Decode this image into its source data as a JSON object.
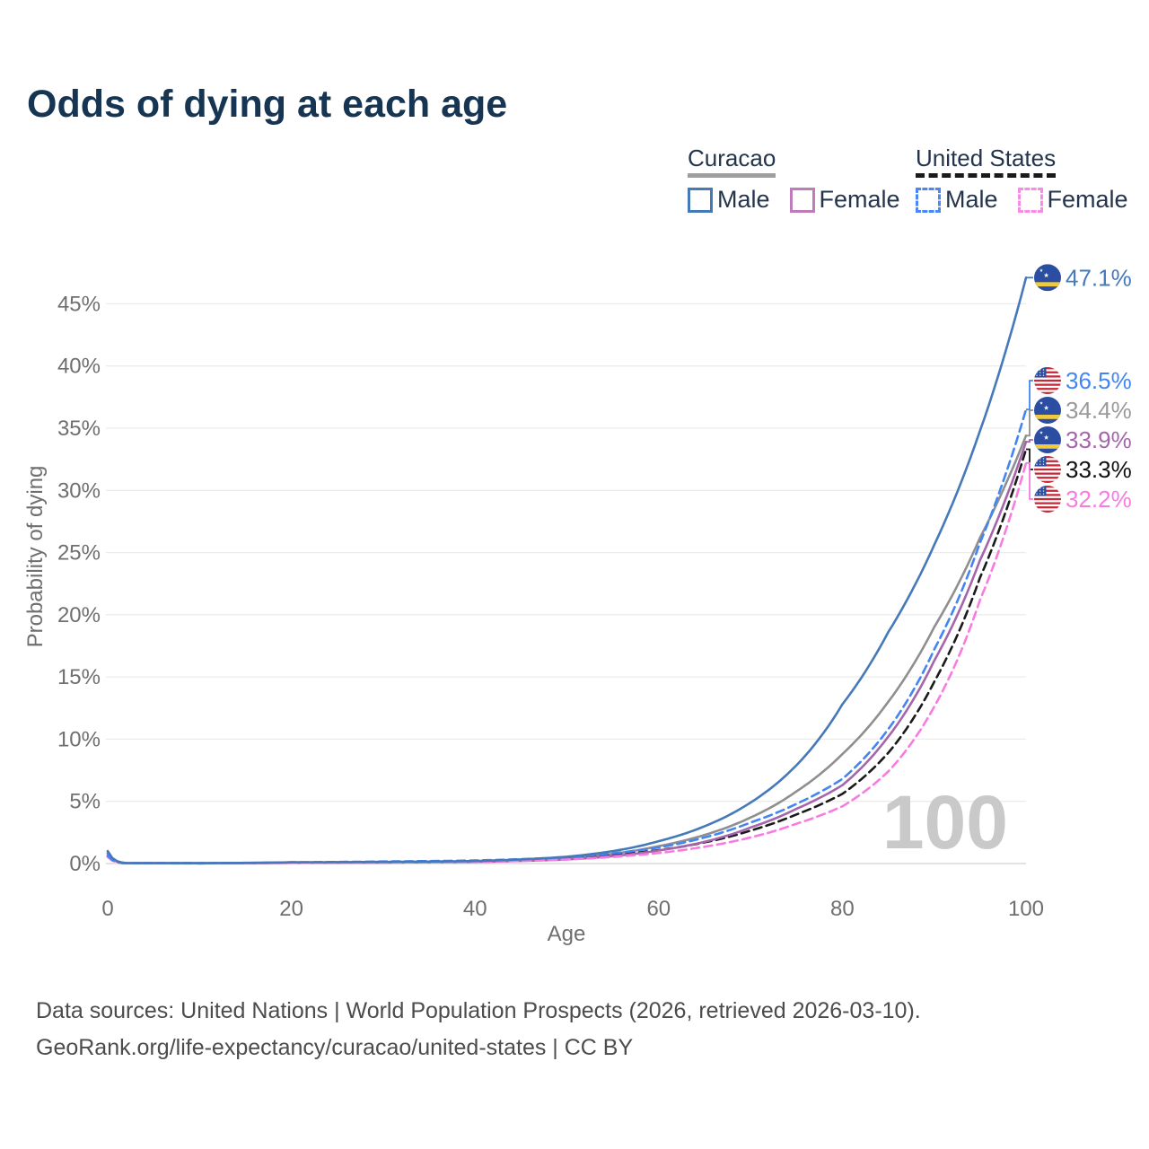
{
  "header": {
    "title": "Odds of dying at each age"
  },
  "legend": {
    "groups": [
      {
        "label": "Curacao",
        "line_style": "solid",
        "underline_color": "#9e9e9e",
        "items": [
          {
            "label": "Male",
            "color": "#4579b9"
          },
          {
            "label": "Female",
            "color": "#bf7cba"
          }
        ]
      },
      {
        "label": "United States",
        "line_style": "dashed",
        "underline_color": "#1a1a1a",
        "items": [
          {
            "label": "Male",
            "color": "#4b87f5"
          },
          {
            "label": "Female",
            "color": "#fb8ae7"
          }
        ]
      }
    ]
  },
  "chart_data": {
    "type": "line",
    "title": "Odds of dying at each age",
    "xlabel": "Age",
    "ylabel": "Probability of dying",
    "watermark": "100",
    "xlim": [
      0,
      100
    ],
    "ylim_percent": [
      0,
      48
    ],
    "grid": "horizontal",
    "legend_position": "top-right",
    "x_ticks": [
      0,
      20,
      40,
      60,
      80,
      100
    ],
    "x_tick_labels": [
      "0",
      "20",
      "40",
      "60",
      "80",
      "100"
    ],
    "y_ticks": [
      0,
      5,
      10,
      15,
      20,
      25,
      30,
      35,
      40,
      45
    ],
    "y_tick_labels": [
      "0%",
      "5%",
      "10%",
      "15%",
      "20%",
      "25%",
      "30%",
      "35%",
      "40%",
      "45%"
    ],
    "units": "percent probability of dying at each age",
    "series": [
      {
        "id": "cw-total",
        "name": "Curacao (both sexes)",
        "style": "solid",
        "color": "#8f8f8f",
        "label_color": "#9a9a9a",
        "flag": "curacao-flag-icon",
        "end_label": "34.4%",
        "points": [
          [
            0,
            0.9
          ],
          [
            2,
            0.035
          ],
          [
            10,
            0.026
          ],
          [
            20,
            0.08
          ],
          [
            30,
            0.105
          ],
          [
            40,
            0.165
          ],
          [
            50,
            0.43
          ],
          [
            55,
            0.78
          ],
          [
            60,
            1.4
          ],
          [
            65,
            2.3
          ],
          [
            70,
            3.7
          ],
          [
            75,
            5.8
          ],
          [
            80,
            8.8
          ],
          [
            85,
            13.0
          ],
          [
            90,
            19.0
          ],
          [
            95,
            26.2
          ],
          [
            100,
            34.4
          ]
        ]
      },
      {
        "id": "us-total",
        "name": "United States (both sexes)",
        "style": "dashed",
        "color": "#1a1a1a",
        "label_color": "#111111",
        "flag": "us-flag-icon",
        "end_label": "33.3%",
        "points": [
          [
            0,
            0.58
          ],
          [
            2,
            0.024
          ],
          [
            10,
            0.018
          ],
          [
            20,
            0.08
          ],
          [
            30,
            0.125
          ],
          [
            40,
            0.195
          ],
          [
            50,
            0.43
          ],
          [
            55,
            0.69
          ],
          [
            60,
            1.08
          ],
          [
            65,
            1.7
          ],
          [
            70,
            2.65
          ],
          [
            75,
            3.95
          ],
          [
            80,
            5.6
          ],
          [
            85,
            8.9
          ],
          [
            90,
            14.6
          ],
          [
            95,
            23.0
          ],
          [
            100,
            33.3
          ]
        ]
      },
      {
        "id": "cw-female",
        "name": "Curacao Female",
        "style": "solid",
        "color": "#a565ab",
        "label_color": "#a565ab",
        "flag": "curacao-flag-icon",
        "end_label": "33.9%",
        "points": [
          [
            0,
            0.8
          ],
          [
            2,
            0.03
          ],
          [
            10,
            0.022
          ],
          [
            20,
            0.058
          ],
          [
            30,
            0.08
          ],
          [
            40,
            0.135
          ],
          [
            50,
            0.33
          ],
          [
            55,
            0.6
          ],
          [
            60,
            1.05
          ],
          [
            65,
            1.75
          ],
          [
            70,
            2.9
          ],
          [
            75,
            4.4
          ],
          [
            80,
            6.3
          ],
          [
            85,
            10.2
          ],
          [
            90,
            16.3
          ],
          [
            95,
            24.4
          ],
          [
            100,
            33.9
          ]
        ]
      },
      {
        "id": "us-female",
        "name": "United States Female",
        "style": "dashed",
        "color": "#fa7be0",
        "label_color": "#fa7be0",
        "flag": "us-flag-icon",
        "end_label": "32.2%",
        "points": [
          [
            0,
            0.52
          ],
          [
            2,
            0.022
          ],
          [
            10,
            0.016
          ],
          [
            20,
            0.055
          ],
          [
            30,
            0.085
          ],
          [
            40,
            0.145
          ],
          [
            50,
            0.33
          ],
          [
            55,
            0.53
          ],
          [
            60,
            0.85
          ],
          [
            65,
            1.35
          ],
          [
            70,
            2.1
          ],
          [
            75,
            3.2
          ],
          [
            80,
            4.6
          ],
          [
            85,
            7.4
          ],
          [
            90,
            12.6
          ],
          [
            95,
            21.2
          ],
          [
            100,
            32.2
          ]
        ]
      },
      {
        "id": "us-male",
        "name": "United States Male",
        "style": "dashed",
        "color": "#4285f4",
        "label_color": "#4285f4",
        "flag": "us-flag-icon",
        "end_label": "36.5%",
        "points": [
          [
            0,
            0.64
          ],
          [
            2,
            0.026
          ],
          [
            10,
            0.02
          ],
          [
            20,
            0.1
          ],
          [
            30,
            0.165
          ],
          [
            40,
            0.245
          ],
          [
            50,
            0.51
          ],
          [
            55,
            0.82
          ],
          [
            60,
            1.3
          ],
          [
            65,
            2.1
          ],
          [
            70,
            3.3
          ],
          [
            75,
            4.8
          ],
          [
            80,
            6.8
          ],
          [
            85,
            10.8
          ],
          [
            90,
            17.2
          ],
          [
            95,
            25.8
          ],
          [
            100,
            36.5
          ]
        ]
      },
      {
        "id": "cw-male",
        "name": "Curacao Male",
        "style": "solid",
        "color": "#4579b9",
        "label_color": "#4579b9",
        "flag": "curacao-flag-icon",
        "end_label": "47.1%",
        "points": [
          [
            0,
            1.0
          ],
          [
            2,
            0.04
          ],
          [
            10,
            0.03
          ],
          [
            20,
            0.1
          ],
          [
            30,
            0.13
          ],
          [
            40,
            0.2
          ],
          [
            50,
            0.55
          ],
          [
            55,
            1.0
          ],
          [
            60,
            1.8
          ],
          [
            65,
            3.0
          ],
          [
            70,
            4.9
          ],
          [
            75,
            7.9
          ],
          [
            80,
            12.8
          ],
          [
            85,
            18.6
          ],
          [
            90,
            25.6
          ],
          [
            95,
            34.8
          ],
          [
            100,
            47.1
          ]
        ]
      }
    ]
  },
  "footer": {
    "line1": "Data sources: United Nations | World Population Prospects (2026, retrieved 2026-03-10).",
    "line2": "GeoRank.org/life-expectancy/curacao/united-states | CC BY"
  }
}
